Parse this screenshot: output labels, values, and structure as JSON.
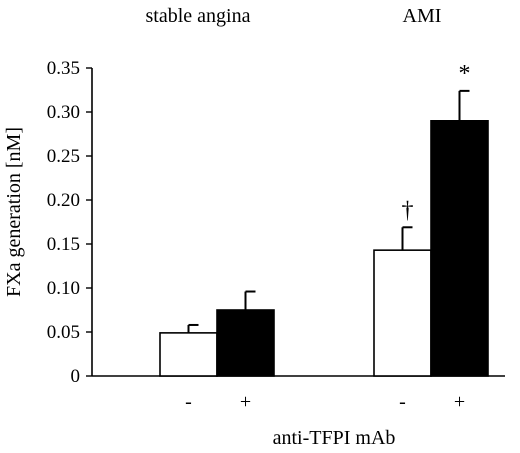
{
  "chart_data": {
    "type": "bar",
    "groups": [
      "stable angina",
      "AMI"
    ],
    "treatment_labels": [
      "-",
      "+"
    ],
    "series": [
      {
        "name": "-",
        "fill": "#ffffff",
        "values": [
          0.049,
          0.143
        ],
        "errors": [
          0.009,
          0.026
        ]
      },
      {
        "name": "+",
        "fill": "#000000",
        "values": [
          0.075,
          0.29
        ],
        "errors": [
          0.021,
          0.034
        ]
      }
    ],
    "annotations": [
      "†",
      "*"
    ],
    "xlabel": "anti-TFPI mAb",
    "ylabel": "FXa generation [nM]",
    "ylim": [
      0,
      0.35
    ],
    "yticks": [
      0,
      0.05,
      0.1,
      0.15,
      0.2,
      0.25,
      0.3,
      0.35
    ],
    "ytick_labels": [
      "0",
      "0.05",
      "0.10",
      "0.15",
      "0.20",
      "0.25",
      "0.30",
      "0.35"
    ],
    "grid": false
  }
}
